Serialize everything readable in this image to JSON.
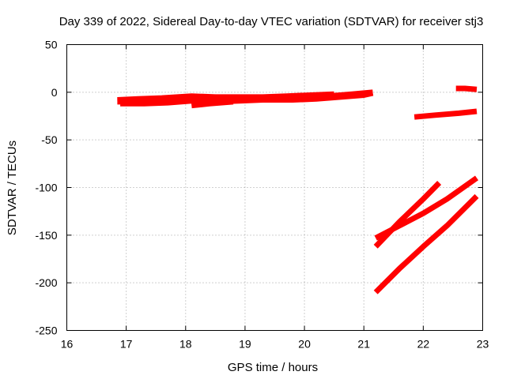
{
  "chart_data": {
    "type": "line",
    "title": "Day 339 of 2022, Sidereal Day-to-day VTEC variation (SDTVAR) for receiver stj3",
    "xlabel": "GPS time / hours",
    "ylabel": "SDTVAR / TECUs",
    "xlim": [
      16,
      23
    ],
    "ylim": [
      -250,
      50
    ],
    "xticks": [
      16,
      17,
      18,
      19,
      20,
      21,
      22,
      23
    ],
    "yticks": [
      -250,
      -200,
      -150,
      -100,
      -50,
      0,
      50
    ],
    "grid": true,
    "legend": "none",
    "series_color": "#ff0000",
    "series": [
      {
        "x": [
          16.85,
          17.2,
          17.6,
          18.0,
          18.4,
          18.8,
          19.2,
          19.6,
          20.0,
          20.4,
          20.8,
          21.15
        ],
        "y": [
          -10,
          -10,
          -9,
          -7,
          -7,
          -7,
          -7,
          -6,
          -5,
          -4,
          -2,
          0
        ]
      },
      {
        "x": [
          16.85,
          17.2,
          17.6,
          18.1,
          18.5,
          18.9,
          19.3,
          19.7,
          20.1,
          20.5
        ],
        "y": [
          -8,
          -7,
          -6,
          -4,
          -5,
          -5,
          -5,
          -4,
          -3,
          -2
        ]
      },
      {
        "x": [
          16.9,
          17.3,
          17.7,
          18.1,
          18.5,
          18.9,
          19.3,
          19.8,
          20.2,
          20.6,
          21.0,
          21.15
        ],
        "y": [
          -12,
          -12,
          -11,
          -9,
          -10,
          -9,
          -8,
          -8,
          -7,
          -5,
          -3,
          -1
        ]
      },
      {
        "x": [
          18.1,
          18.4,
          18.8
        ],
        "y": [
          -14,
          -12,
          -10
        ]
      },
      {
        "x": [
          21.85,
          22.2,
          22.6,
          22.9
        ],
        "y": [
          -26,
          -24,
          -22,
          -20
        ]
      },
      {
        "x": [
          22.55,
          22.7,
          22.9
        ],
        "y": [
          4,
          4,
          3
        ]
      },
      {
        "x": [
          21.2,
          21.6,
          22.0,
          22.4,
          22.9
        ],
        "y": [
          -153,
          -140,
          -127,
          -112,
          -90
        ]
      },
      {
        "x": [
          21.2,
          21.6,
          22.0,
          22.27
        ],
        "y": [
          -162,
          -136,
          -112,
          -95
        ]
      },
      {
        "x": [
          21.2,
          21.6,
          22.0,
          22.4,
          22.9
        ],
        "y": [
          -210,
          -185,
          -162,
          -140,
          -109
        ]
      }
    ]
  }
}
